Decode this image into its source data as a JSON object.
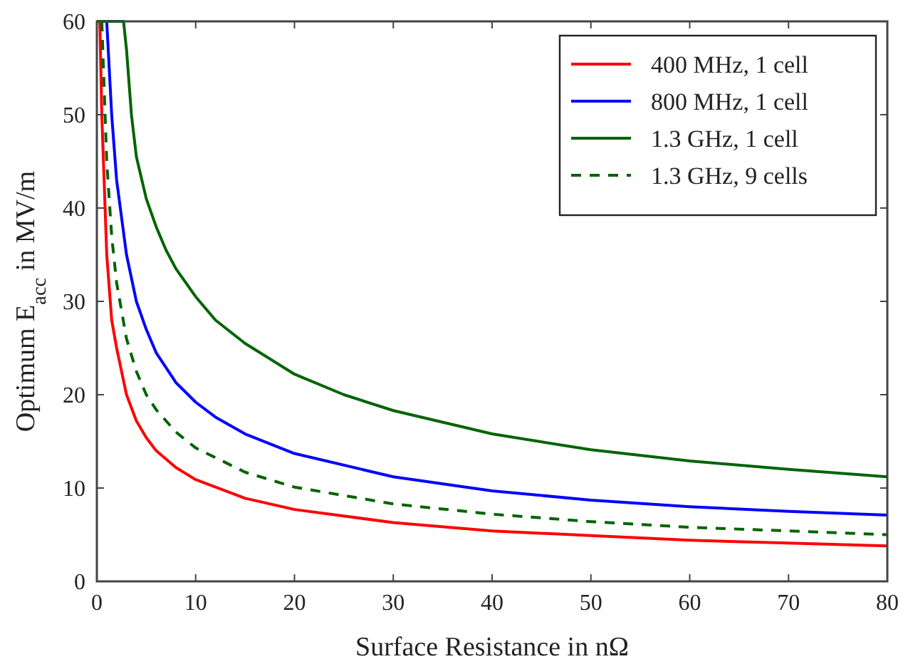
{
  "chart_data": {
    "type": "line",
    "xlabel": "Surface Resistance in nΩ",
    "ylabel": "Optimum E$_{acc}$ in MV/m",
    "xlim": [
      0,
      80
    ],
    "ylim": [
      0,
      60
    ],
    "xticks": [
      0,
      10,
      20,
      30,
      40,
      50,
      60,
      70,
      80
    ],
    "yticks": [
      0,
      10,
      20,
      30,
      40,
      50,
      60
    ],
    "legend": "top right",
    "grid": false,
    "series": [
      {
        "name": "400 MHz, 1 cell",
        "color": "#ff0000",
        "line_style": "solid",
        "x": [
          0.3,
          0.5,
          1,
          1.5,
          2,
          3,
          4,
          5,
          6,
          8,
          10,
          15,
          20,
          30,
          40,
          50,
          60,
          70,
          80
        ],
        "values": [
          60,
          50,
          35,
          28,
          25,
          20,
          17.2,
          15.4,
          14,
          12.2,
          10.9,
          8.9,
          7.7,
          6.3,
          5.4,
          4.9,
          4.4,
          4.1,
          3.8
        ]
      },
      {
        "name": "800 MHz, 1 cell",
        "color": "#0000ff",
        "line_style": "solid",
        "x": [
          1,
          1.5,
          2,
          3,
          4,
          5,
          6,
          8,
          10,
          12,
          15,
          20,
          30,
          40,
          50,
          60,
          70,
          80
        ],
        "values": [
          60,
          50,
          43,
          35,
          30,
          27,
          24.5,
          21.3,
          19.2,
          17.6,
          15.8,
          13.7,
          11.2,
          9.7,
          8.7,
          8,
          7.5,
          7.1
        ]
      },
      {
        "name": "1.3 GHz, 1 cell",
        "color": "#006400",
        "line_style": "solid",
        "x": [
          0,
          2.7,
          3,
          3.5,
          4,
          5,
          6,
          7,
          8,
          10,
          12,
          15,
          20,
          25,
          30,
          40,
          50,
          60,
          70,
          80
        ],
        "values": [
          60,
          60,
          57,
          50,
          45.5,
          41,
          38,
          35.5,
          33.5,
          30.5,
          28,
          25.5,
          22.2,
          20,
          18.3,
          15.8,
          14.1,
          12.9,
          12,
          11.2
        ]
      },
      {
        "name": "1.3 GHz, 9 cells",
        "color": "#006400",
        "line_style": "dashed",
        "x": [
          0.5,
          1,
          1.5,
          2,
          3,
          4,
          5,
          6,
          8,
          10,
          15,
          20,
          30,
          40,
          50,
          60,
          70,
          80
        ],
        "values": [
          60,
          45,
          37,
          32,
          26,
          22.5,
          20,
          18.4,
          16,
          14.3,
          11.7,
          10.1,
          8.3,
          7.2,
          6.4,
          5.8,
          5.4,
          5
        ]
      }
    ]
  }
}
